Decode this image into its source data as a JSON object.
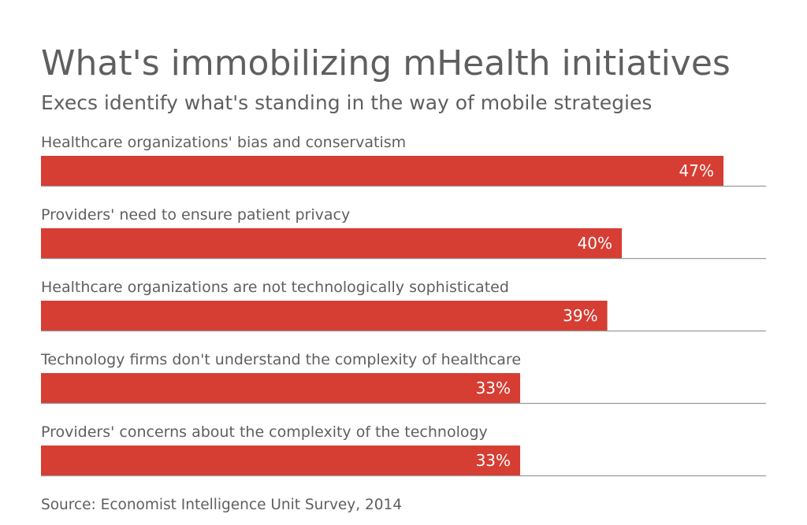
{
  "chart_data": {
    "type": "bar",
    "orientation": "horizontal",
    "title": "What's immobilizing mHealth initiatives",
    "subtitle": "Execs identify what's standing in the way of mobile strategies",
    "categories": [
      "Healthcare organizations' bias and conservatism",
      "Providers' need to ensure patient privacy",
      "Healthcare organizations are not technologically sophisticated",
      "Technology firms don't understand the complexity of healthcare",
      "Providers' concerns about the complexity of the technology"
    ],
    "values": [
      47,
      40,
      39,
      33,
      33
    ],
    "value_labels": [
      "47%",
      "40%",
      "39%",
      "33%",
      "33%"
    ],
    "xlim": [
      0,
      50
    ],
    "grid": false,
    "legend": "none",
    "source": "Source: Economist Intelligence Unit Survey, 2014",
    "colors": {
      "bar": "#d63d33",
      "text": "#5f5f5f",
      "baseline": "#9a9a9a"
    }
  }
}
